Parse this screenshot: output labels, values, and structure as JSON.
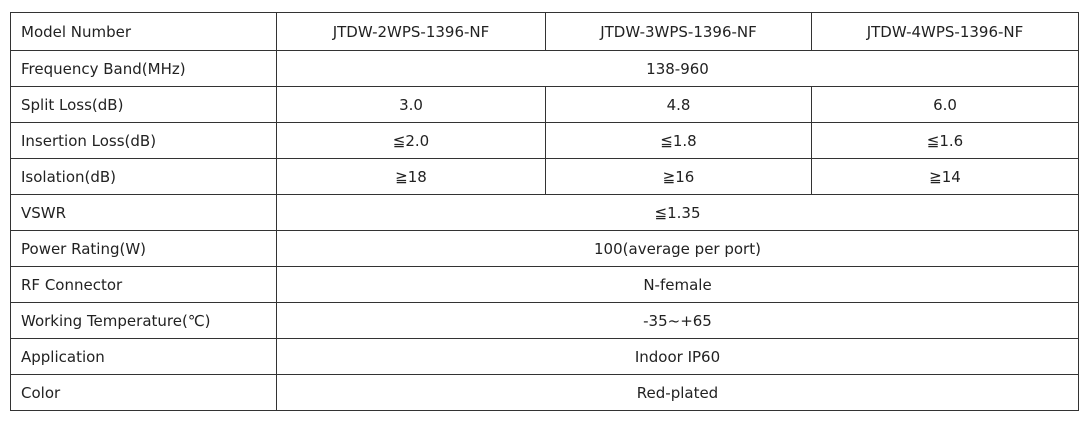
{
  "table": {
    "header": [
      "Model Number",
      "JTDW-2WPS-1396-NF",
      "JTDW-3WPS-1396-NF",
      "JTDW-4WPS-1396-NF"
    ],
    "rows": [
      {
        "label": "Frequency Band(MHz)",
        "values": [
          "138-960"
        ]
      },
      {
        "label": "Split Loss(dB)",
        "values": [
          "3.0",
          "4.8",
          "6.0"
        ]
      },
      {
        "label": "Insertion Loss(dB)",
        "values": [
          "≦2.0",
          "≦1.8",
          "≦1.6"
        ]
      },
      {
        "label": "Isolation(dB)",
        "values": [
          "≧18",
          "≧16",
          "≧14"
        ]
      },
      {
        "label": "VSWR",
        "values": [
          "≦1.35"
        ]
      },
      {
        "label": "Power Rating(W)",
        "values": [
          "100(average per port)"
        ]
      },
      {
        "label": "RF Connector",
        "values": [
          "N-female"
        ]
      },
      {
        "label": "Working Temperature(℃)",
        "values": [
          "-35~+65"
        ]
      },
      {
        "label": "Application",
        "values": [
          "Indoor IP60"
        ]
      },
      {
        "label": "Color",
        "values": [
          "Red-plated"
        ]
      }
    ]
  }
}
